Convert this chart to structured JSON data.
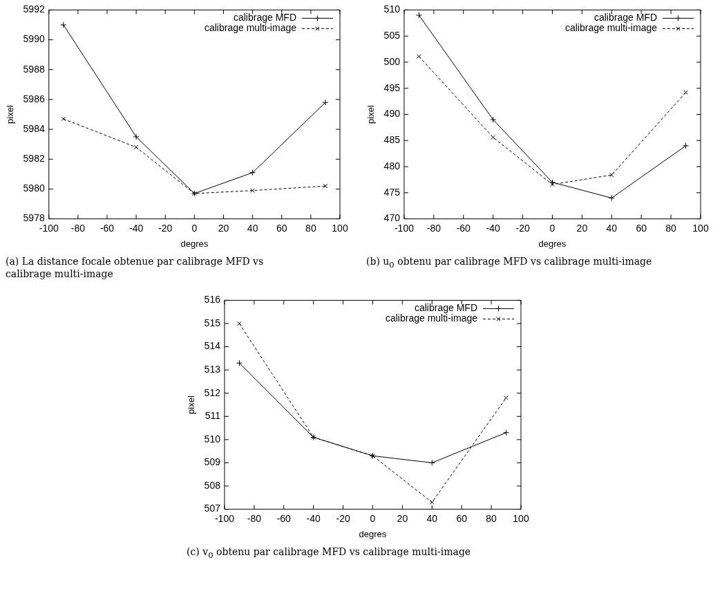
{
  "chart_data": [
    {
      "type": "line",
      "xlabel": "degres",
      "ylabel": "pixel",
      "x": [
        -90,
        -40,
        0,
        40,
        90
      ],
      "xlim": [
        -100,
        100
      ],
      "xticks": [
        -100,
        -80,
        -60,
        -40,
        -20,
        0,
        20,
        40,
        60,
        80,
        100
      ],
      "ylim": [
        5978,
        5992
      ],
      "yticks": [
        5978,
        5980,
        5982,
        5984,
        5986,
        5988,
        5990,
        5992
      ],
      "grid": false,
      "legend": "top right",
      "marker": "cross",
      "series": [
        {
          "name": "calibrage MFD",
          "color": "#000000",
          "line_style": "solid",
          "values": [
            5991.0,
            5983.5,
            5979.7,
            5981.1,
            5985.8
          ]
        },
        {
          "name": "calibrage multi-image",
          "color": "#000000",
          "line_style": "dashed",
          "values": [
            5984.7,
            5982.8,
            5979.7,
            5979.9,
            5980.2
          ]
        }
      ],
      "annotations": [
        "(a) La distance focale obtenue par calibrage MFD vs calibrage multi-image"
      ]
    },
    {
      "type": "line",
      "xlabel": "degres",
      "ylabel": "pixel",
      "x": [
        -90,
        -40,
        0,
        40,
        90
      ],
      "xlim": [
        -100,
        100
      ],
      "xticks": [
        -100,
        -80,
        -60,
        -40,
        -20,
        0,
        20,
        40,
        60,
        80,
        100
      ],
      "ylim": [
        470,
        510
      ],
      "yticks": [
        470,
        475,
        480,
        485,
        490,
        495,
        500,
        505,
        510
      ],
      "grid": false,
      "legend": "top right",
      "marker": "cross",
      "series": [
        {
          "name": "calibrage MFD",
          "color": "#000000",
          "line_style": "solid",
          "values": [
            509.0,
            489.0,
            477.0,
            474.0,
            484.0
          ]
        },
        {
          "name": "calibrage multi-image",
          "color": "#000000",
          "line_style": "dashed",
          "values": [
            501.1,
            485.6,
            476.6,
            478.4,
            494.2
          ]
        }
      ],
      "annotations": [
        "(b) u$_{0}$ obtenu par calibrage MFD vs calibrage multi-image"
      ]
    },
    {
      "type": "line",
      "xlabel": "degres",
      "ylabel": "pixel",
      "x": [
        -90,
        -40,
        0,
        40,
        90
      ],
      "xlim": [
        -100,
        100
      ],
      "xticks": [
        -100,
        -80,
        -60,
        -40,
        -20,
        0,
        20,
        40,
        60,
        80,
        100
      ],
      "ylim": [
        507,
        516
      ],
      "yticks": [
        507,
        508,
        509,
        510,
        511,
        512,
        513,
        514,
        515,
        516
      ],
      "grid": false,
      "legend": "top right",
      "marker": "cross",
      "series": [
        {
          "name": "calibrage MFD",
          "color": "#000000",
          "line_style": "solid",
          "values": [
            513.3,
            510.1,
            509.3,
            509.0,
            510.3
          ]
        },
        {
          "name": "calibrage multi-image",
          "color": "#000000",
          "line_style": "dashed",
          "values": [
            515.0,
            510.1,
            509.3,
            507.3,
            511.8
          ]
        }
      ],
      "annotations": [
        "(c) v$_{0}$ obtenu par calibrage MFD vs calibrage multi-image"
      ]
    }
  ]
}
